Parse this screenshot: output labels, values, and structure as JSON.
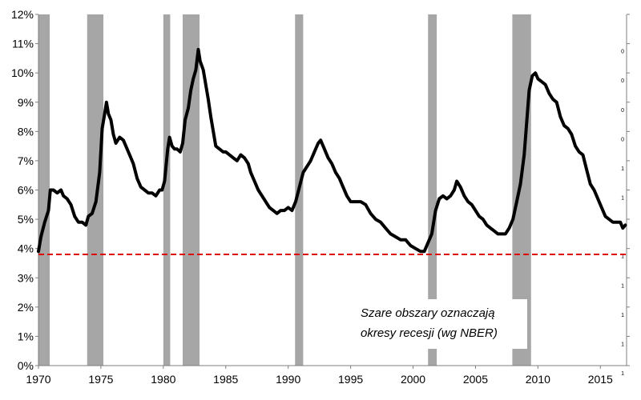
{
  "chart_data": {
    "type": "line",
    "title": "",
    "xlabel": "",
    "ylabel": "",
    "xlim": [
      1970,
      2017.1
    ],
    "ylim": [
      0,
      12
    ],
    "y_ticks": [
      0,
      1,
      2,
      3,
      4,
      5,
      6,
      7,
      8,
      9,
      10,
      11,
      12
    ],
    "y_tick_labels": [
      "0%",
      "1%",
      "2%",
      "3%",
      "4%",
      "5%",
      "6%",
      "7%",
      "8%",
      "9%",
      "10%",
      "11%",
      "12%"
    ],
    "x_ticks": [
      1970,
      1975,
      1980,
      1985,
      1990,
      1995,
      2000,
      2005,
      2010,
      2015
    ],
    "x_tick_labels": [
      "1970",
      "1975",
      "1980",
      "1985",
      "1990",
      "1995",
      "2000",
      "2005",
      "2010",
      "2015"
    ],
    "right_axis_tick_labels": [
      "1",
      "1",
      "1",
      "1",
      "1",
      "1",
      "1",
      "1",
      "0",
      "0",
      "0",
      "0",
      "0"
    ],
    "grid": false,
    "recessions": [
      [
        1970.0,
        1970.9
      ],
      [
        1973.9,
        1975.2
      ],
      [
        1980.0,
        1980.55
      ],
      [
        1981.55,
        1982.9
      ],
      [
        1990.55,
        1991.2
      ],
      [
        2001.2,
        2001.9
      ],
      [
        2007.95,
        2009.45
      ]
    ],
    "reference_line": {
      "y": 3.8,
      "color": "#e00000"
    },
    "annotation": [
      "Szare obszary oznaczają",
      "okresy recesji (wg NBER)"
    ],
    "series": [
      {
        "color": "#000000",
        "x": [
          1970.0,
          1970.2,
          1970.5,
          1970.8,
          1970.95,
          1971.2,
          1971.5,
          1971.8,
          1972.0,
          1972.3,
          1972.6,
          1972.9,
          1973.2,
          1973.5,
          1973.8,
          1974.0,
          1974.3,
          1974.6,
          1974.9,
          1975.1,
          1975.3,
          1975.45,
          1975.6,
          1975.8,
          1976.0,
          1976.2,
          1976.5,
          1976.8,
          1977.0,
          1977.3,
          1977.6,
          1977.9,
          1978.2,
          1978.5,
          1978.8,
          1979.1,
          1979.4,
          1979.7,
          1979.9,
          1980.1,
          1980.35,
          1980.5,
          1980.7,
          1980.9,
          1981.1,
          1981.35,
          1981.55,
          1981.75,
          1982.0,
          1982.2,
          1982.4,
          1982.6,
          1982.8,
          1982.95,
          1983.2,
          1983.4,
          1983.6,
          1983.8,
          1984.0,
          1984.2,
          1984.5,
          1984.8,
          1985.0,
          1985.3,
          1985.6,
          1985.9,
          1986.2,
          1986.5,
          1986.8,
          1987.0,
          1987.3,
          1987.6,
          1987.9,
          1988.2,
          1988.5,
          1988.8,
          1989.1,
          1989.4,
          1989.7,
          1990.0,
          1990.3,
          1990.6,
          1990.9,
          1991.2,
          1991.5,
          1991.8,
          1992.1,
          1992.4,
          1992.6,
          1992.9,
          1993.2,
          1993.5,
          1993.8,
          1994.1,
          1994.4,
          1994.7,
          1995.0,
          1995.4,
          1995.8,
          1996.2,
          1996.6,
          1997.0,
          1997.4,
          1997.8,
          1998.2,
          1998.6,
          1999.0,
          1999.4,
          1999.8,
          2000.2,
          2000.6,
          2000.9,
          2001.2,
          2001.5,
          2001.8,
          2002.1,
          2002.4,
          2002.7,
          2003.0,
          2003.3,
          2003.5,
          2003.8,
          2004.1,
          2004.4,
          2004.7,
          2005.0,
          2005.3,
          2005.6,
          2005.9,
          2006.2,
          2006.5,
          2006.8,
          2007.1,
          2007.4,
          2007.7,
          2008.0,
          2008.3,
          2008.6,
          2008.9,
          2009.1,
          2009.3,
          2009.55,
          2009.8,
          2010.0,
          2010.3,
          2010.6,
          2010.9,
          2011.2,
          2011.5,
          2011.8,
          2012.1,
          2012.4,
          2012.7,
          2013.0,
          2013.3,
          2013.6,
          2013.9,
          2014.2,
          2014.5,
          2014.8,
          2015.1,
          2015.4,
          2015.7,
          2016.0,
          2016.3,
          2016.6,
          2016.8,
          2017.0
        ],
        "y": [
          3.9,
          4.4,
          4.9,
          5.3,
          6.0,
          6.0,
          5.9,
          6.0,
          5.8,
          5.7,
          5.5,
          5.1,
          4.9,
          4.9,
          4.8,
          5.1,
          5.2,
          5.6,
          6.6,
          8.1,
          8.6,
          9.0,
          8.6,
          8.4,
          7.9,
          7.6,
          7.8,
          7.7,
          7.5,
          7.2,
          6.9,
          6.4,
          6.1,
          6.0,
          5.9,
          5.9,
          5.8,
          6.0,
          6.0,
          6.3,
          7.4,
          7.8,
          7.5,
          7.4,
          7.4,
          7.3,
          7.6,
          8.4,
          8.8,
          9.4,
          9.8,
          10.1,
          10.8,
          10.4,
          10.1,
          9.6,
          9.1,
          8.5,
          8.0,
          7.5,
          7.4,
          7.3,
          7.3,
          7.2,
          7.1,
          7.0,
          7.2,
          7.1,
          6.9,
          6.6,
          6.3,
          6.0,
          5.8,
          5.6,
          5.4,
          5.3,
          5.2,
          5.3,
          5.3,
          5.4,
          5.3,
          5.6,
          6.1,
          6.6,
          6.8,
          7.0,
          7.3,
          7.6,
          7.7,
          7.4,
          7.1,
          6.9,
          6.6,
          6.4,
          6.1,
          5.8,
          5.6,
          5.6,
          5.6,
          5.5,
          5.2,
          5.0,
          4.9,
          4.7,
          4.5,
          4.4,
          4.3,
          4.3,
          4.1,
          4.0,
          3.9,
          3.9,
          4.2,
          4.5,
          5.3,
          5.7,
          5.8,
          5.7,
          5.8,
          6.0,
          6.3,
          6.1,
          5.8,
          5.6,
          5.5,
          5.3,
          5.1,
          5.0,
          4.8,
          4.7,
          4.6,
          4.5,
          4.5,
          4.5,
          4.7,
          5.0,
          5.6,
          6.2,
          7.2,
          8.3,
          9.4,
          9.9,
          10.0,
          9.8,
          9.7,
          9.6,
          9.3,
          9.1,
          9.0,
          8.5,
          8.2,
          8.1,
          7.9,
          7.5,
          7.3,
          7.2,
          6.7,
          6.2,
          6.0,
          5.7,
          5.4,
          5.1,
          5.0,
          4.9,
          4.9,
          4.9,
          4.7,
          4.8
        ]
      }
    ]
  }
}
